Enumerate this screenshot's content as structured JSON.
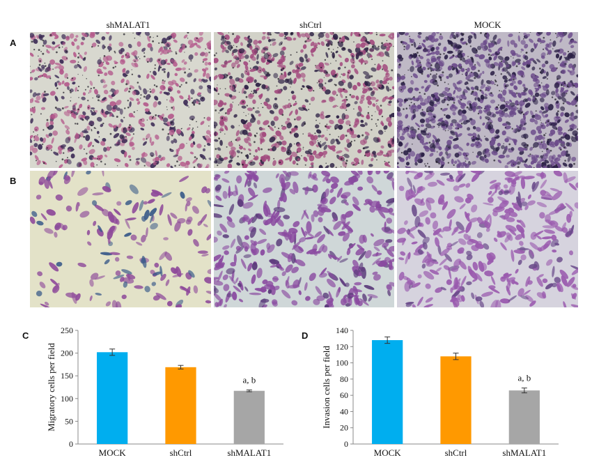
{
  "column_titles": [
    "shMALAT1",
    "shCtrl",
    "MOCK"
  ],
  "panel_labels": {
    "a": "A",
    "b": "B",
    "c": "C",
    "d": "D"
  },
  "micrographs": {
    "row_a": [
      {
        "name": "micrograph-a-shmalat1",
        "bg": "#d8d8cf",
        "cell": "#b45a8c",
        "dark": "#3b2a55",
        "density": 520
      },
      {
        "name": "micrograph-a-shctrl",
        "bg": "#d2d2c8",
        "cell": "#a24a7e",
        "dark": "#2e2245",
        "density": 650
      },
      {
        "name": "micrograph-a-mock",
        "bg": "#bfb9c6",
        "cell": "#6b4a8a",
        "dark": "#2a1f45",
        "density": 900
      }
    ],
    "row_b": [
      {
        "name": "micrograph-b-shmalat1",
        "bg": "#e3e2c8",
        "cell": "#8e4a9a",
        "dark": "#3c5c8a",
        "density": 170
      },
      {
        "name": "micrograph-b-shctrl",
        "bg": "#cfd7d8",
        "cell": "#8a4aa0",
        "dark": "#5a3a7a",
        "density": 380
      },
      {
        "name": "micrograph-b-mock",
        "bg": "#d6d3de",
        "cell": "#9a5aae",
        "dark": "#6a4a8a",
        "density": 360
      }
    ]
  },
  "colors": {
    "mock": "#00aeef",
    "shctrl": "#ff9900",
    "shmalat1": "#a6a6a6"
  },
  "chart_data": [
    {
      "type": "bar",
      "panel": "C",
      "ylabel": "Migratory cells per field",
      "categories": [
        "MOCK",
        "shCtrl",
        "shMALAT1"
      ],
      "values": [
        202,
        169,
        117
      ],
      "errors": [
        7,
        4,
        2
      ],
      "ylim": [
        0,
        250
      ],
      "yticks": [
        0,
        50,
        100,
        150,
        200,
        250
      ],
      "annotation": {
        "category": "shMALAT1",
        "text": "a, b"
      }
    },
    {
      "type": "bar",
      "panel": "D",
      "ylabel": "Invasion cells per field",
      "categories": [
        "MOCK",
        "shCtrl",
        "shMALAT1"
      ],
      "values": [
        128,
        108,
        66
      ],
      "errors": [
        4,
        4,
        3
      ],
      "ylim": [
        0,
        140
      ],
      "yticks": [
        0,
        20,
        40,
        60,
        80,
        100,
        120,
        140
      ],
      "annotation": {
        "category": "shMALAT1",
        "text": "a, b"
      }
    }
  ]
}
